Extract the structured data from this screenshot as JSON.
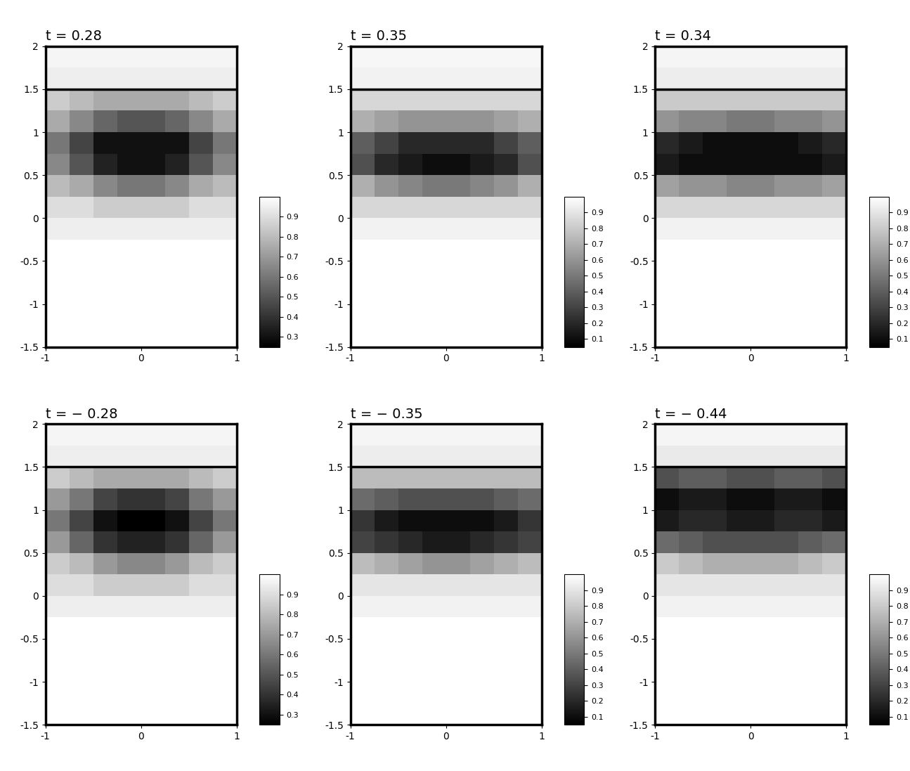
{
  "chart_data": [
    {
      "type": "heatmap",
      "title": "t = 0.28",
      "xlim": [
        -1,
        1
      ],
      "ylim": [
        -1.5,
        2
      ],
      "xticks": [
        -1,
        0,
        1
      ],
      "yticks": [
        -1.5,
        -1,
        -0.5,
        0,
        0.5,
        1,
        1.5,
        2
      ],
      "x_edges": [
        -1,
        -0.75,
        -0.5,
        -0.25,
        0,
        0.25,
        0.5,
        0.75,
        1
      ],
      "y_edges": [
        -1.5,
        -1.25,
        -1,
        -0.75,
        -0.5,
        -0.25,
        0,
        0.25,
        0.5,
        0.75,
        1,
        1.25,
        1.5,
        1.75,
        2
      ],
      "hline": 1.5,
      "cells": [
        [
          1,
          1,
          1,
          1,
          1,
          1,
          1,
          1
        ],
        [
          1,
          1,
          1,
          1,
          1,
          1,
          1,
          1
        ],
        [
          1,
          1,
          1,
          1,
          1,
          1,
          1,
          1
        ],
        [
          1,
          1,
          1,
          1,
          1,
          1,
          1,
          1
        ],
        [
          1,
          1,
          1,
          1,
          1,
          1,
          1,
          1
        ],
        [
          0.95,
          0.95,
          0.95,
          0.95,
          0.95,
          0.95,
          0.95,
          0.95
        ],
        [
          0.9,
          0.9,
          0.85,
          0.85,
          0.85,
          0.85,
          0.9,
          0.9
        ],
        [
          0.8,
          0.75,
          0.65,
          0.6,
          0.6,
          0.65,
          0.75,
          0.8
        ],
        [
          0.65,
          0.5,
          0.35,
          0.3,
          0.3,
          0.35,
          0.5,
          0.65
        ],
        [
          0.6,
          0.45,
          0.3,
          0.3,
          0.3,
          0.3,
          0.45,
          0.6
        ],
        [
          0.75,
          0.65,
          0.55,
          0.5,
          0.5,
          0.55,
          0.65,
          0.75
        ],
        [
          0.85,
          0.8,
          0.75,
          0.75,
          0.75,
          0.75,
          0.8,
          0.85
        ],
        [
          0.95,
          0.95,
          0.95,
          0.95,
          0.95,
          0.95,
          0.95,
          0.95
        ],
        [
          0.97,
          0.97,
          0.97,
          0.97,
          0.97,
          0.97,
          0.97,
          0.97
        ]
      ],
      "colorbar_range": [
        0.25,
        1
      ],
      "colorbar_ticks": [
        0.3,
        0.4,
        0.5,
        0.6,
        0.7,
        0.8,
        0.9
      ]
    },
    {
      "type": "heatmap",
      "title": "t = 0.35",
      "xlim": [
        -1,
        1
      ],
      "ylim": [
        -1.5,
        2
      ],
      "xticks": [
        -1,
        0,
        1
      ],
      "yticks": [
        -1.5,
        -1,
        -0.5,
        0,
        0.5,
        1,
        1.5,
        2
      ],
      "x_edges": [
        -1,
        -0.75,
        -0.5,
        -0.25,
        0,
        0.25,
        0.5,
        0.75,
        1
      ],
      "y_edges": [
        -1.5,
        -1.25,
        -1,
        -0.75,
        -0.5,
        -0.25,
        0,
        0.25,
        0.5,
        0.75,
        1,
        1.25,
        1.5,
        1.75,
        2
      ],
      "hline": 1.5,
      "cells": [
        [
          1,
          1,
          1,
          1,
          1,
          1,
          1,
          1
        ],
        [
          1,
          1,
          1,
          1,
          1,
          1,
          1,
          1
        ],
        [
          1,
          1,
          1,
          1,
          1,
          1,
          1,
          1
        ],
        [
          1,
          1,
          1,
          1,
          1,
          1,
          1,
          1
        ],
        [
          1,
          1,
          1,
          1,
          1,
          1,
          1,
          1
        ],
        [
          0.95,
          0.95,
          0.95,
          0.95,
          0.95,
          0.95,
          0.95,
          0.95
        ],
        [
          0.85,
          0.85,
          0.85,
          0.85,
          0.85,
          0.85,
          0.85,
          0.85
        ],
        [
          0.7,
          0.6,
          0.55,
          0.5,
          0.5,
          0.55,
          0.6,
          0.7
        ],
        [
          0.35,
          0.2,
          0.15,
          0.1,
          0.1,
          0.15,
          0.2,
          0.35
        ],
        [
          0.4,
          0.3,
          0.2,
          0.2,
          0.2,
          0.2,
          0.3,
          0.4
        ],
        [
          0.7,
          0.65,
          0.6,
          0.6,
          0.6,
          0.6,
          0.65,
          0.7
        ],
        [
          0.85,
          0.85,
          0.85,
          0.85,
          0.85,
          0.85,
          0.85,
          0.85
        ],
        [
          0.95,
          0.95,
          0.95,
          0.95,
          0.95,
          0.95,
          0.95,
          0.95
        ],
        [
          0.97,
          0.97,
          0.97,
          0.97,
          0.97,
          0.97,
          0.97,
          0.97
        ]
      ],
      "colorbar_range": [
        0.05,
        1
      ],
      "colorbar_ticks": [
        0.1,
        0.2,
        0.3,
        0.4,
        0.5,
        0.6,
        0.7,
        0.8,
        0.9
      ]
    },
    {
      "type": "heatmap",
      "title": "t = 0.34",
      "xlim": [
        -1,
        1
      ],
      "ylim": [
        -1.5,
        2
      ],
      "xticks": [
        -1,
        0,
        1
      ],
      "yticks": [
        -1.5,
        -1,
        -0.5,
        0,
        0.5,
        1,
        1.5,
        2
      ],
      "x_edges": [
        -1,
        -0.75,
        -0.5,
        -0.25,
        0,
        0.25,
        0.5,
        0.75,
        1
      ],
      "y_edges": [
        -1.5,
        -1.25,
        -1,
        -0.75,
        -0.5,
        -0.25,
        0,
        0.25,
        0.5,
        0.75,
        1,
        1.25,
        1.5,
        1.75,
        2
      ],
      "hline": 1.5,
      "cells": [
        [
          1,
          1,
          1,
          1,
          1,
          1,
          1,
          1
        ],
        [
          1,
          1,
          1,
          1,
          1,
          1,
          1,
          1
        ],
        [
          1,
          1,
          1,
          1,
          1,
          1,
          1,
          1
        ],
        [
          1,
          1,
          1,
          1,
          1,
          1,
          1,
          1
        ],
        [
          1,
          1,
          1,
          1,
          1,
          1,
          1,
          1
        ],
        [
          0.95,
          0.95,
          0.95,
          0.95,
          0.95,
          0.95,
          0.95,
          0.95
        ],
        [
          0.85,
          0.85,
          0.85,
          0.85,
          0.85,
          0.85,
          0.85,
          0.85
        ],
        [
          0.65,
          0.6,
          0.6,
          0.55,
          0.55,
          0.6,
          0.6,
          0.65
        ],
        [
          0.15,
          0.1,
          0.1,
          0.1,
          0.1,
          0.1,
          0.1,
          0.15
        ],
        [
          0.2,
          0.15,
          0.1,
          0.1,
          0.1,
          0.1,
          0.15,
          0.2
        ],
        [
          0.6,
          0.55,
          0.55,
          0.5,
          0.5,
          0.55,
          0.55,
          0.6
        ],
        [
          0.8,
          0.8,
          0.8,
          0.8,
          0.8,
          0.8,
          0.8,
          0.8
        ],
        [
          0.93,
          0.93,
          0.93,
          0.93,
          0.93,
          0.93,
          0.93,
          0.93
        ],
        [
          0.96,
          0.96,
          0.96,
          0.96,
          0.96,
          0.96,
          0.96,
          0.96
        ]
      ],
      "colorbar_range": [
        0.05,
        1
      ],
      "colorbar_ticks": [
        0.1,
        0.2,
        0.3,
        0.4,
        0.5,
        0.6,
        0.7,
        0.8,
        0.9
      ]
    },
    {
      "type": "heatmap",
      "title": "t = − 0.28",
      "xlim": [
        -1,
        1
      ],
      "ylim": [
        -1.5,
        2
      ],
      "xticks": [
        -1,
        0,
        1
      ],
      "yticks": [
        -1.5,
        -1,
        -0.5,
        0,
        0.5,
        1,
        1.5,
        2
      ],
      "x_edges": [
        -1,
        -0.75,
        -0.5,
        -0.25,
        0,
        0.25,
        0.5,
        0.75,
        1
      ],
      "y_edges": [
        -1.5,
        -1.25,
        -1,
        -0.75,
        -0.5,
        -0.25,
        0,
        0.25,
        0.5,
        0.75,
        1,
        1.25,
        1.5,
        1.75,
        2
      ],
      "hline": 1.5,
      "cells": [
        [
          1,
          1,
          1,
          1,
          1,
          1,
          1,
          1
        ],
        [
          1,
          1,
          1,
          1,
          1,
          1,
          1,
          1
        ],
        [
          1,
          1,
          1,
          1,
          1,
          1,
          1,
          1
        ],
        [
          1,
          1,
          1,
          1,
          1,
          1,
          1,
          1
        ],
        [
          1,
          1,
          1,
          1,
          1,
          1,
          1,
          1
        ],
        [
          0.95,
          0.95,
          0.95,
          0.95,
          0.95,
          0.95,
          0.95,
          0.95
        ],
        [
          0.9,
          0.9,
          0.85,
          0.85,
          0.85,
          0.85,
          0.9,
          0.9
        ],
        [
          0.85,
          0.8,
          0.7,
          0.65,
          0.65,
          0.7,
          0.8,
          0.85
        ],
        [
          0.7,
          0.55,
          0.4,
          0.35,
          0.35,
          0.4,
          0.55,
          0.7
        ],
        [
          0.6,
          0.45,
          0.3,
          0.25,
          0.25,
          0.3,
          0.45,
          0.6
        ],
        [
          0.7,
          0.6,
          0.45,
          0.4,
          0.4,
          0.45,
          0.6,
          0.7
        ],
        [
          0.85,
          0.8,
          0.75,
          0.75,
          0.75,
          0.75,
          0.8,
          0.85
        ],
        [
          0.95,
          0.95,
          0.95,
          0.95,
          0.95,
          0.95,
          0.95,
          0.95
        ],
        [
          0.97,
          0.97,
          0.97,
          0.97,
          0.97,
          0.97,
          0.97,
          0.97
        ]
      ],
      "colorbar_range": [
        0.25,
        1
      ],
      "colorbar_ticks": [
        0.3,
        0.4,
        0.5,
        0.6,
        0.7,
        0.8,
        0.9
      ]
    },
    {
      "type": "heatmap",
      "title": "t = − 0.35",
      "xlim": [
        -1,
        1
      ],
      "ylim": [
        -1.5,
        2
      ],
      "xticks": [
        -1,
        0,
        1
      ],
      "yticks": [
        -1.5,
        -1,
        -0.5,
        0,
        0.5,
        1,
        1.5,
        2
      ],
      "x_edges": [
        -1,
        -0.75,
        -0.5,
        -0.25,
        0,
        0.25,
        0.5,
        0.75,
        1
      ],
      "y_edges": [
        -1.5,
        -1.25,
        -1,
        -0.75,
        -0.5,
        -0.25,
        0,
        0.25,
        0.5,
        0.75,
        1,
        1.25,
        1.5,
        1.75,
        2
      ],
      "hline": 1.5,
      "cells": [
        [
          1,
          1,
          1,
          1,
          1,
          1,
          1,
          1
        ],
        [
          1,
          1,
          1,
          1,
          1,
          1,
          1,
          1
        ],
        [
          1,
          1,
          1,
          1,
          1,
          1,
          1,
          1
        ],
        [
          1,
          1,
          1,
          1,
          1,
          1,
          1,
          1
        ],
        [
          1,
          1,
          1,
          1,
          1,
          1,
          1,
          1
        ],
        [
          0.95,
          0.95,
          0.95,
          0.95,
          0.95,
          0.95,
          0.95,
          0.95
        ],
        [
          0.9,
          0.9,
          0.9,
          0.9,
          0.9,
          0.9,
          0.9,
          0.9
        ],
        [
          0.75,
          0.7,
          0.65,
          0.6,
          0.6,
          0.65,
          0.7,
          0.75
        ],
        [
          0.3,
          0.25,
          0.2,
          0.15,
          0.15,
          0.2,
          0.25,
          0.3
        ],
        [
          0.25,
          0.15,
          0.1,
          0.1,
          0.1,
          0.1,
          0.15,
          0.25
        ],
        [
          0.45,
          0.4,
          0.35,
          0.35,
          0.35,
          0.35,
          0.4,
          0.45
        ],
        [
          0.75,
          0.75,
          0.75,
          0.75,
          0.75,
          0.75,
          0.75,
          0.75
        ],
        [
          0.93,
          0.93,
          0.93,
          0.93,
          0.93,
          0.93,
          0.93,
          0.93
        ],
        [
          0.96,
          0.96,
          0.96,
          0.96,
          0.96,
          0.96,
          0.96,
          0.96
        ]
      ],
      "colorbar_range": [
        0.05,
        1
      ],
      "colorbar_ticks": [
        0.1,
        0.2,
        0.3,
        0.4,
        0.5,
        0.6,
        0.7,
        0.8,
        0.9
      ]
    },
    {
      "type": "heatmap",
      "title": "t = − 0.44",
      "xlim": [
        -1,
        1
      ],
      "ylim": [
        -1.5,
        2
      ],
      "xticks": [
        -1,
        0,
        1
      ],
      "yticks": [
        -1.5,
        -1,
        -0.5,
        0,
        0.5,
        1,
        1.5,
        2
      ],
      "x_edges": [
        -1,
        -0.75,
        -0.5,
        -0.25,
        0,
        0.25,
        0.5,
        0.75,
        1
      ],
      "y_edges": [
        -1.5,
        -1.25,
        -1,
        -0.75,
        -0.5,
        -0.25,
        0,
        0.25,
        0.5,
        0.75,
        1,
        1.25,
        1.5,
        1.75,
        2
      ],
      "hline": 1.5,
      "cells": [
        [
          1,
          1,
          1,
          1,
          1,
          1,
          1,
          1
        ],
        [
          1,
          1,
          1,
          1,
          1,
          1,
          1,
          1
        ],
        [
          1,
          1,
          1,
          1,
          1,
          1,
          1,
          1
        ],
        [
          1,
          1,
          1,
          1,
          1,
          1,
          1,
          1
        ],
        [
          1,
          1,
          1,
          1,
          1,
          1,
          1,
          1
        ],
        [
          0.95,
          0.95,
          0.95,
          0.95,
          0.95,
          0.95,
          0.95,
          0.95
        ],
        [
          0.9,
          0.9,
          0.9,
          0.9,
          0.9,
          0.9,
          0.9,
          0.9
        ],
        [
          0.8,
          0.75,
          0.7,
          0.7,
          0.7,
          0.7,
          0.75,
          0.8
        ],
        [
          0.45,
          0.4,
          0.35,
          0.35,
          0.35,
          0.35,
          0.4,
          0.45
        ],
        [
          0.15,
          0.2,
          0.2,
          0.15,
          0.15,
          0.2,
          0.2,
          0.15
        ],
        [
          0.1,
          0.15,
          0.15,
          0.1,
          0.1,
          0.15,
          0.15,
          0.1
        ],
        [
          0.35,
          0.4,
          0.4,
          0.35,
          0.35,
          0.4,
          0.4,
          0.35
        ],
        [
          0.92,
          0.92,
          0.92,
          0.92,
          0.92,
          0.92,
          0.92,
          0.92
        ],
        [
          0.96,
          0.96,
          0.96,
          0.96,
          0.96,
          0.96,
          0.96,
          0.96
        ]
      ],
      "colorbar_range": [
        0.05,
        1
      ],
      "colorbar_ticks": [
        0.1,
        0.2,
        0.3,
        0.4,
        0.5,
        0.6,
        0.7,
        0.8,
        0.9
      ]
    }
  ]
}
